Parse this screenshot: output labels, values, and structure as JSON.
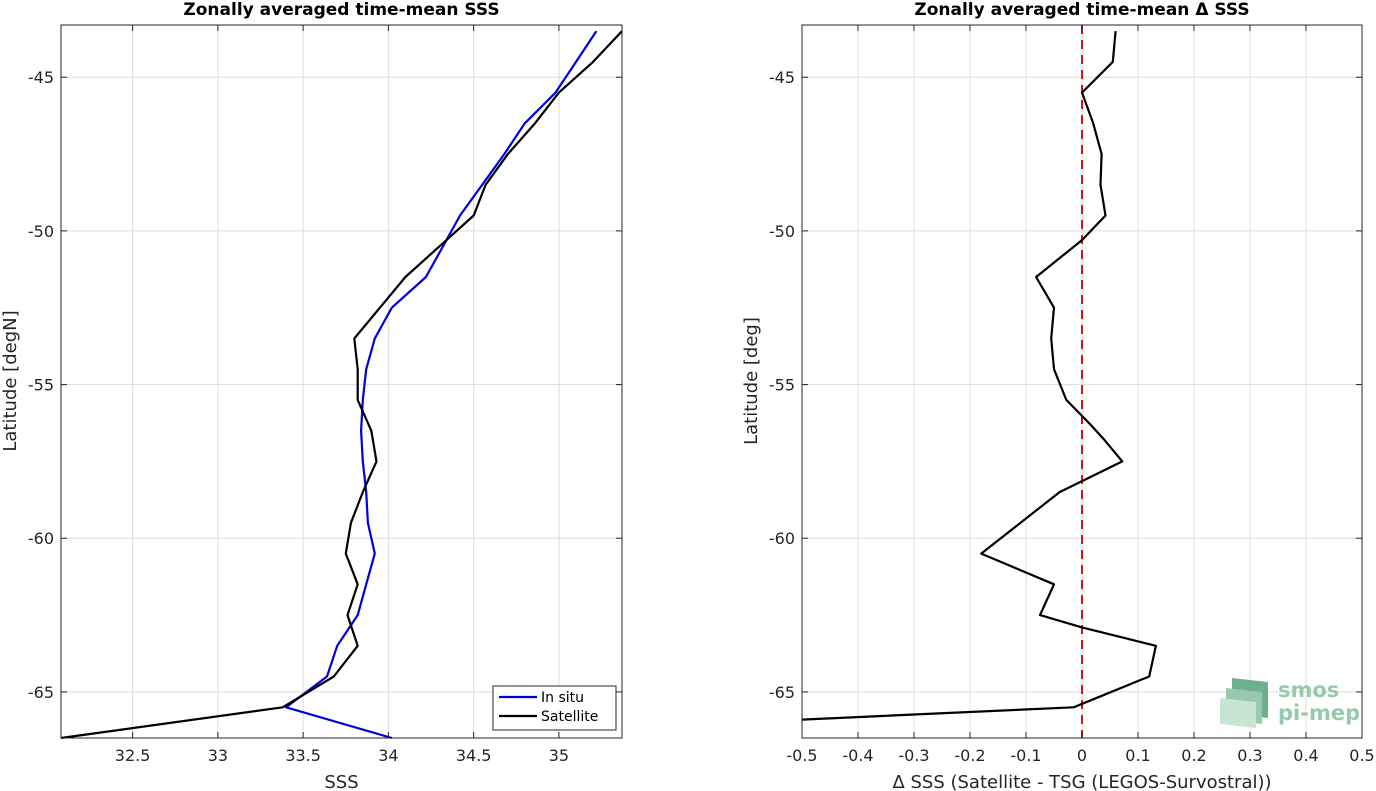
{
  "colors": {
    "in_situ": "#0000dd",
    "satellite": "#000000",
    "zero_line": "#dd1111",
    "logo": "#8cc5a4"
  },
  "logo": {
    "line1": "smos",
    "line2": "pi-mep"
  },
  "chart_data": [
    {
      "type": "line",
      "title": "Zonally averaged time-mean SSS",
      "xlabel": "SSS",
      "ylabel": "Latitude [degN]",
      "xlim": [
        32.08,
        35.37
      ],
      "ylim": [
        -66.5,
        -43.3
      ],
      "xticks": [
        32.5,
        33,
        33.5,
        34,
        34.5,
        35
      ],
      "xtick_labels": [
        "32.5",
        "33",
        "33.5",
        "34",
        "34.5",
        "35"
      ],
      "yticks": [
        -45,
        -50,
        -55,
        -60,
        -65
      ],
      "ytick_labels": [
        "-45",
        "-50",
        "-55",
        "-60",
        "-65"
      ],
      "grid": true,
      "legend": {
        "position": "bottom-right",
        "entries": [
          "In situ",
          "Satellite"
        ]
      },
      "series": [
        {
          "name": "In situ",
          "color_key": "in_situ",
          "points": [
            [
              35.22,
              -43.5
            ],
            [
              35.1,
              -44.5
            ],
            [
              34.98,
              -45.5
            ],
            [
              34.8,
              -46.5
            ],
            [
              34.68,
              -47.5
            ],
            [
              34.55,
              -48.5
            ],
            [
              34.42,
              -49.5
            ],
            [
              34.32,
              -50.5
            ],
            [
              34.22,
              -51.5
            ],
            [
              34.02,
              -52.5
            ],
            [
              33.92,
              -53.5
            ],
            [
              33.87,
              -54.5
            ],
            [
              33.85,
              -55.5
            ],
            [
              33.84,
              -56.5
            ],
            [
              33.85,
              -57.5
            ],
            [
              33.87,
              -58.5
            ],
            [
              33.88,
              -59.5
            ],
            [
              33.92,
              -60.5
            ],
            [
              33.87,
              -61.5
            ],
            [
              33.82,
              -62.5
            ],
            [
              33.7,
              -63.5
            ],
            [
              33.64,
              -64.5
            ],
            [
              33.4,
              -65.5
            ],
            [
              34.02,
              -66.5
            ]
          ]
        },
        {
          "name": "Satellite",
          "color_key": "satellite",
          "points": [
            [
              35.37,
              -43.5
            ],
            [
              35.2,
              -44.5
            ],
            [
              35.0,
              -45.5
            ],
            [
              34.86,
              -46.5
            ],
            [
              34.7,
              -47.5
            ],
            [
              34.57,
              -48.5
            ],
            [
              34.5,
              -49.5
            ],
            [
              34.3,
              -50.5
            ],
            [
              34.1,
              -51.5
            ],
            [
              33.95,
              -52.5
            ],
            [
              33.8,
              -53.5
            ],
            [
              33.82,
              -54.5
            ],
            [
              33.82,
              -55.5
            ],
            [
              33.9,
              -56.5
            ],
            [
              33.93,
              -57.5
            ],
            [
              33.85,
              -58.5
            ],
            [
              33.78,
              -59.5
            ],
            [
              33.75,
              -60.5
            ],
            [
              33.82,
              -61.5
            ],
            [
              33.76,
              -62.5
            ],
            [
              33.82,
              -63.5
            ],
            [
              33.68,
              -64.5
            ],
            [
              33.38,
              -65.5
            ],
            [
              32.08,
              -66.5
            ]
          ]
        }
      ]
    },
    {
      "type": "line",
      "title": "Zonally averaged time-mean Δ SSS",
      "xlabel": "Δ SSS (Satellite - TSG (LEGOS-Survostral))",
      "ylabel": "Latitude [deg]",
      "xlim": [
        -0.5,
        0.5
      ],
      "ylim": [
        -66.5,
        -43.3
      ],
      "xticks": [
        -0.5,
        -0.4,
        -0.3,
        -0.2,
        -0.1,
        0,
        0.1,
        0.2,
        0.3,
        0.4,
        0.5
      ],
      "xtick_labels": [
        "-0.5",
        "-0.4",
        "-0.3",
        "-0.2",
        "-0.1",
        "0",
        "0.1",
        "0.2",
        "0.3",
        "0.4",
        "0.5"
      ],
      "yticks": [
        -45,
        -50,
        -55,
        -60,
        -65
      ],
      "ytick_labels": [
        "-45",
        "-50",
        "-55",
        "-60",
        "-65"
      ],
      "grid": true,
      "reference_line": {
        "x": 0,
        "style": "dashed",
        "color_key": "zero_line"
      },
      "series": [
        {
          "name": "",
          "color_key": "satellite",
          "points": [
            [
              0.06,
              -43.5
            ],
            [
              0.055,
              -44.5
            ],
            [
              0.0,
              -45.5
            ],
            [
              0.02,
              -46.5
            ],
            [
              0.035,
              -47.5
            ],
            [
              0.033,
              -48.5
            ],
            [
              0.042,
              -49.5
            ],
            [
              0.0,
              -50.3
            ],
            [
              -0.082,
              -51.5
            ],
            [
              -0.05,
              -52.5
            ],
            [
              -0.055,
              -53.5
            ],
            [
              -0.05,
              -54.5
            ],
            [
              -0.028,
              -55.5
            ],
            [
              0.015,
              -56.3
            ],
            [
              0.04,
              -56.8
            ],
            [
              0.072,
              -57.5
            ],
            [
              -0.04,
              -58.5
            ],
            [
              -0.11,
              -59.5
            ],
            [
              -0.18,
              -60.5
            ],
            [
              -0.05,
              -61.5
            ],
            [
              -0.075,
              -62.5
            ],
            [
              0.0,
              -62.9
            ],
            [
              0.132,
              -63.5
            ],
            [
              0.12,
              -64.5
            ],
            [
              -0.015,
              -65.5
            ],
            [
              -0.5,
              -65.9
            ]
          ]
        }
      ]
    }
  ]
}
